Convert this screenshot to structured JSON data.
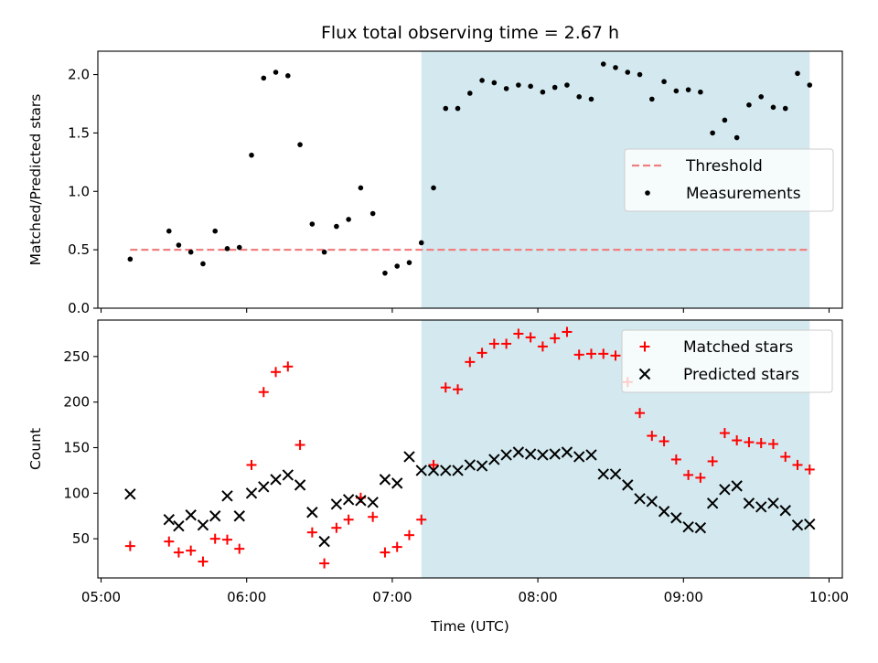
{
  "title": "Flux total observing time = 2.67 h",
  "colors": {
    "shade": "#d3e9ef",
    "threshold": "#f08080",
    "measurement": "#000000",
    "matched": "#ff0000",
    "predicted": "#000000"
  },
  "chart_data": [
    {
      "type": "scatter",
      "panel": "top",
      "xlabel": "",
      "ylabel": "Matched/Predicted stars",
      "xlim": [
        "05:00",
        "10:00"
      ],
      "ylim": [
        0,
        2.2
      ],
      "yticks": [
        0.0,
        0.5,
        1.0,
        1.5,
        2.0
      ],
      "ytick_labels": [
        "0.0",
        "0.5",
        "1.0",
        "1.5",
        "2.0"
      ],
      "grid": false,
      "legend_position": "center-right",
      "shaded_span": [
        "07:12",
        "09:52"
      ],
      "threshold": {
        "name": "Threshold",
        "value": 0.5,
        "x_range": [
          "05:12",
          "09:52"
        ]
      },
      "series": [
        {
          "name": "Measurements",
          "marker": "dot",
          "x": [
            "05:12",
            "05:28",
            "05:32",
            "05:37",
            "05:42",
            "05:47",
            "05:52",
            "05:57",
            "06:02",
            "06:07",
            "06:12",
            "06:17",
            "06:22",
            "06:27",
            "06:32",
            "06:37",
            "06:42",
            "06:47",
            "06:52",
            "06:57",
            "07:02",
            "07:07",
            "07:12",
            "07:17",
            "07:22",
            "07:27",
            "07:32",
            "07:37",
            "07:42",
            "07:47",
            "07:52",
            "07:57",
            "08:02",
            "08:07",
            "08:12",
            "08:17",
            "08:22",
            "08:27",
            "08:32",
            "08:37",
            "08:42",
            "08:47",
            "08:52",
            "08:57",
            "09:02",
            "09:07",
            "09:12",
            "09:17",
            "09:22",
            "09:27",
            "09:32",
            "09:37",
            "09:42",
            "09:47",
            "09:52"
          ],
          "values": [
            0.42,
            0.66,
            0.54,
            0.48,
            0.38,
            0.66,
            0.51,
            0.52,
            1.31,
            1.97,
            2.02,
            1.99,
            1.4,
            0.72,
            0.48,
            0.7,
            0.76,
            1.03,
            0.81,
            0.3,
            0.36,
            0.39,
            0.56,
            1.03,
            1.71,
            1.71,
            1.84,
            1.95,
            1.93,
            1.88,
            1.91,
            1.9,
            1.85,
            1.89,
            1.91,
            1.81,
            1.79,
            2.09,
            2.06,
            2.02,
            2.0,
            1.79,
            1.94,
            1.86,
            1.87,
            1.85,
            1.5,
            1.61,
            1.46,
            1.74,
            1.81,
            1.72,
            1.71,
            2.01,
            1.91
          ]
        }
      ]
    },
    {
      "type": "scatter",
      "panel": "bottom",
      "xlabel": "Time (UTC)",
      "ylabel": "Count",
      "xlim": [
        "05:00",
        "10:00"
      ],
      "xticks": [
        "05:00",
        "06:00",
        "07:00",
        "08:00",
        "09:00",
        "10:00"
      ],
      "ylim": [
        7,
        290
      ],
      "yticks": [
        50,
        100,
        150,
        200,
        250
      ],
      "grid": false,
      "legend_position": "top-right",
      "shaded_span": [
        "07:12",
        "09:52"
      ],
      "series": [
        {
          "name": "Matched stars",
          "marker": "plus",
          "x": [
            "05:12",
            "05:28",
            "05:32",
            "05:37",
            "05:42",
            "05:47",
            "05:52",
            "05:57",
            "06:02",
            "06:07",
            "06:12",
            "06:17",
            "06:22",
            "06:27",
            "06:32",
            "06:37",
            "06:42",
            "06:47",
            "06:52",
            "06:57",
            "07:02",
            "07:07",
            "07:12",
            "07:17",
            "07:22",
            "07:27",
            "07:32",
            "07:37",
            "07:42",
            "07:47",
            "07:52",
            "07:57",
            "08:02",
            "08:07",
            "08:12",
            "08:17",
            "08:22",
            "08:27",
            "08:32",
            "08:37",
            "08:42",
            "08:47",
            "08:52",
            "08:57",
            "09:02",
            "09:07",
            "09:12",
            "09:17",
            "09:22",
            "09:27",
            "09:32",
            "09:37",
            "09:42",
            "09:47",
            "09:52"
          ],
          "values": [
            42,
            47,
            35,
            37,
            25,
            50,
            49,
            39,
            131,
            211,
            233,
            239,
            153,
            57,
            23,
            62,
            71,
            95,
            74,
            35,
            41,
            54,
            71,
            131,
            216,
            214,
            244,
            254,
            264,
            264,
            275,
            271,
            261,
            270,
            277,
            252,
            253,
            253,
            251,
            222,
            188,
            163,
            157,
            137,
            120,
            117,
            135,
            166,
            158,
            156,
            155,
            154,
            140,
            131,
            126
          ]
        },
        {
          "name": "Predicted stars",
          "marker": "x",
          "x": [
            "05:12",
            "05:28",
            "05:32",
            "05:37",
            "05:42",
            "05:47",
            "05:52",
            "05:57",
            "06:02",
            "06:07",
            "06:12",
            "06:17",
            "06:22",
            "06:27",
            "06:32",
            "06:37",
            "06:42",
            "06:47",
            "06:52",
            "06:57",
            "07:02",
            "07:07",
            "07:12",
            "07:17",
            "07:22",
            "07:27",
            "07:32",
            "07:37",
            "07:42",
            "07:47",
            "07:52",
            "07:57",
            "08:02",
            "08:07",
            "08:12",
            "08:17",
            "08:22",
            "08:27",
            "08:32",
            "08:37",
            "08:42",
            "08:47",
            "08:52",
            "08:57",
            "09:02",
            "09:07",
            "09:12",
            "09:17",
            "09:22",
            "09:27",
            "09:32",
            "09:37",
            "09:42",
            "09:47",
            "09:52"
          ],
          "values": [
            99,
            71,
            64,
            76,
            65,
            75,
            97,
            75,
            100,
            107,
            115,
            120,
            109,
            79,
            47,
            88,
            93,
            92,
            90,
            115,
            111,
            140,
            125,
            125,
            125,
            125,
            131,
            130,
            137,
            142,
            145,
            143,
            142,
            143,
            145,
            140,
            142,
            121,
            121,
            109,
            94,
            91,
            80,
            73,
            63,
            62,
            89,
            104,
            108,
            89,
            85,
            89,
            81,
            65,
            66
          ]
        }
      ]
    }
  ]
}
